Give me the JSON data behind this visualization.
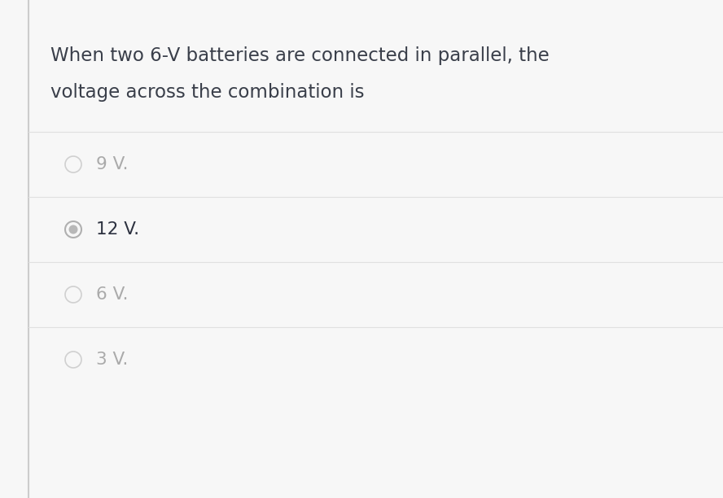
{
  "background_color": "#f7f7f7",
  "left_border_color": "#cccccc",
  "question_line1": "When two 6-V batteries are connected in parallel, the",
  "question_line2": "voltage across the combination is",
  "options": [
    "9 V.",
    "12 V.",
    "6 V.",
    "3 V."
  ],
  "correct_index": 1,
  "question_font_size": 16.5,
  "option_font_size": 15.5,
  "question_text_color": "#3a3f4a",
  "option_selected_text_color": "#2d3240",
  "option_unselected_text_color": "#aaaaaa",
  "radio_unselected_edge": "#d0d0d0",
  "radio_unselected_fill": "#f7f7f7",
  "radio_selected_edge": "#b0b0b0",
  "radio_selected_fill": "#b8b8b8",
  "divider_color": "#e0e0e0",
  "border_color": "#cccccc"
}
